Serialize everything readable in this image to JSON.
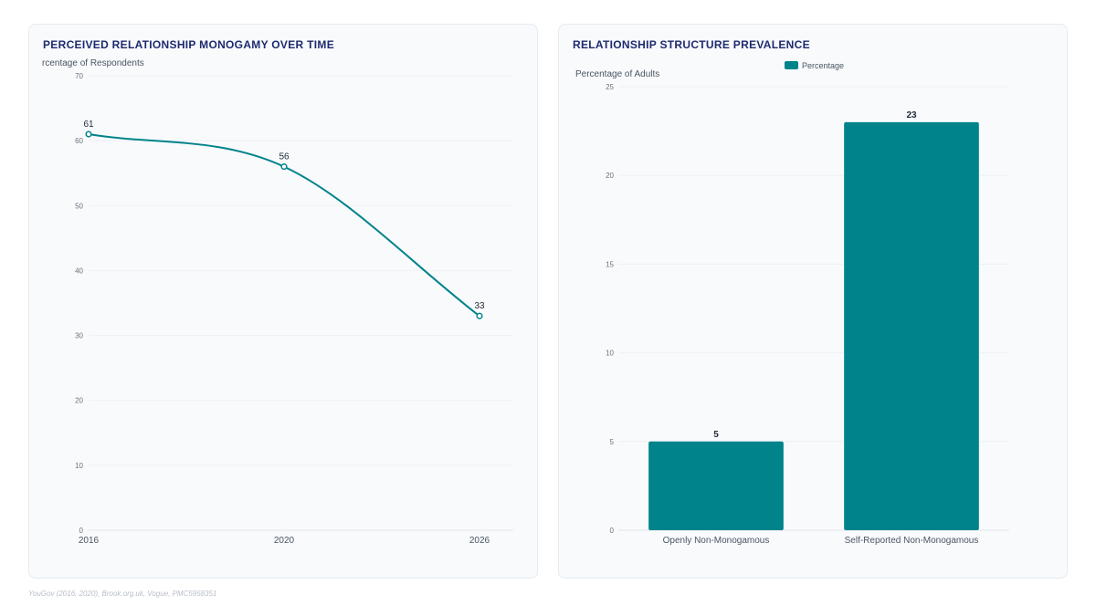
{
  "colors": {
    "accent": "#00838a",
    "title": "#1e2a6e",
    "grid": "#eef1f5",
    "axis": "#e2e6ec"
  },
  "left": {
    "title": "PERCEIVED RELATIONSHIP MONOGAMY OVER TIME"
  },
  "right": {
    "title": "RELATIONSHIP STRUCTURE PREVALENCE"
  },
  "source": "YouGov (2016, 2020), Brook.org.uk, Vogue, PMC5958351",
  "chart_data": [
    {
      "type": "line",
      "title": "PERCEIVED RELATIONSHIP MONOGAMY OVER TIME",
      "ylabel": "rcentage of Respondents",
      "xlabel": "",
      "x": [
        "2016",
        "2020",
        "2026"
      ],
      "values": [
        61,
        56,
        33
      ],
      "ylim": [
        0,
        70
      ],
      "yticks": [
        0,
        10,
        20,
        30,
        40,
        50,
        60,
        70
      ],
      "grid": true,
      "smooth": true
    },
    {
      "type": "bar",
      "title": "RELATIONSHIP STRUCTURE PREVALENCE",
      "ylabel": "Percentage of Adults",
      "xlabel": "",
      "categories": [
        "Openly Non-Monogamous",
        "Self-Reported Non-Monogamous"
      ],
      "series": [
        {
          "name": "Percentage",
          "values": [
            5,
            23
          ]
        }
      ],
      "ylim": [
        0,
        25
      ],
      "yticks": [
        0,
        5,
        10,
        15,
        20,
        25
      ],
      "grid": true,
      "legend": "top-center"
    }
  ]
}
